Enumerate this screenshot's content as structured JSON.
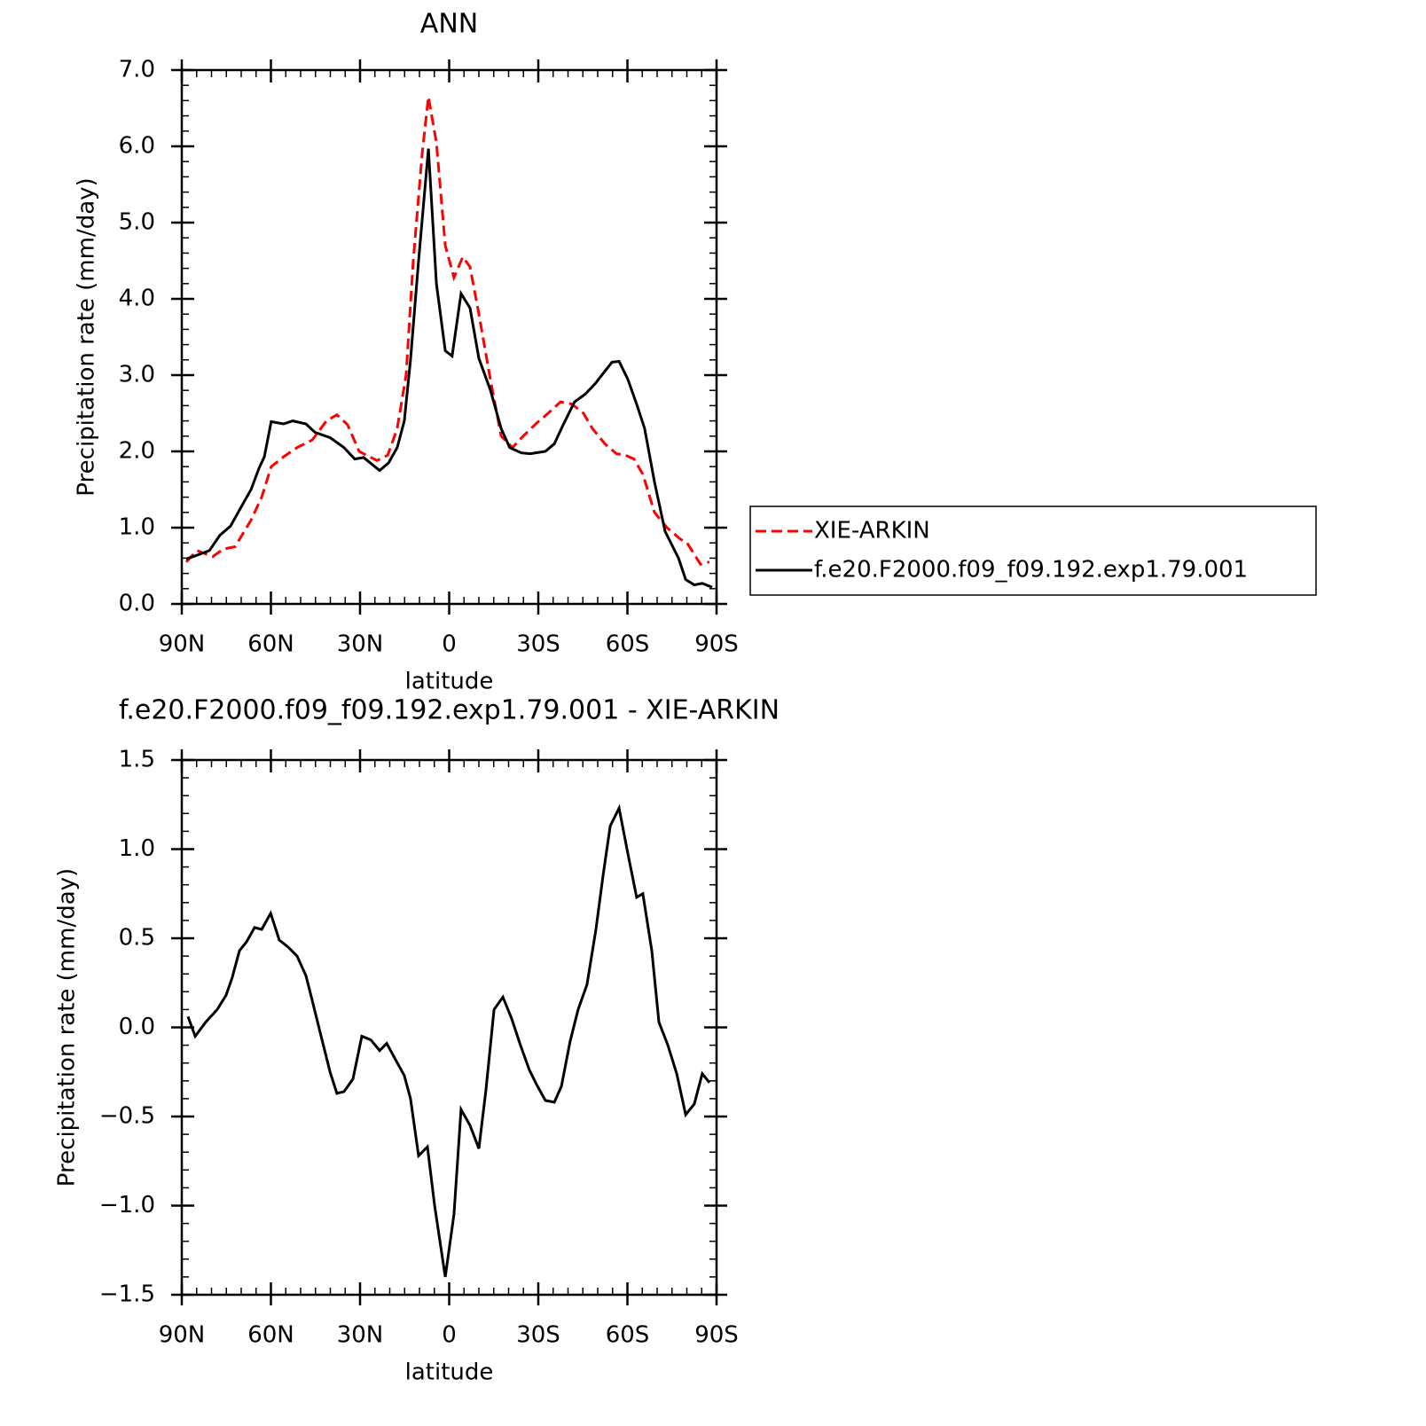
{
  "chart_data": [
    {
      "type": "line",
      "title": "ANN",
      "x_label": "latitude",
      "y_label": "Precipitation rate (mm/day)",
      "xlim": [
        90,
        -90
      ],
      "xticks": [
        {
          "value": 90,
          "label": "90N"
        },
        {
          "value": 60,
          "label": "60N"
        },
        {
          "value": 30,
          "label": "30N"
        },
        0,
        {
          "value": -30,
          "label": "30S"
        },
        {
          "value": -60,
          "label": "60S"
        },
        {
          "value": -90,
          "label": "90S"
        }
      ],
      "ylim": [
        0,
        7
      ],
      "yticks": [
        {
          "value": 0,
          "label": "0.0"
        },
        {
          "value": 1,
          "label": "1.0"
        },
        {
          "value": 2,
          "label": "2.0"
        },
        {
          "value": 3,
          "label": "3.0"
        },
        {
          "value": 4,
          "label": "4.0"
        },
        {
          "value": 5,
          "label": "5.0"
        },
        {
          "value": 6,
          "label": "6.0"
        },
        {
          "value": 7,
          "label": "7.0"
        }
      ],
      "legend": "right",
      "series": [
        {
          "name": "XIE-ARKIN",
          "color": "#ff0000",
          "line_style": "dashed",
          "x": [
            88.5,
            84.9,
            79.6,
            76,
            72.1,
            66.7,
            63.1,
            59.9,
            55.7,
            51.2,
            46.1,
            41.3,
            37.8,
            34.2,
            30.3,
            24.3,
            20.7,
            17.5,
            14.5,
            12.1,
            9.1,
            7,
            4.3,
            1.3,
            -1.6,
            -4.6,
            -7,
            -10,
            -13.6,
            -17.5,
            -21.3,
            -24.9,
            -29.4,
            -33.3,
            -37.5,
            -41.3,
            -45.2,
            -48.2,
            -52.4,
            -56.3,
            -59.3,
            -62.2,
            -65.2,
            -69.1,
            -73.3,
            -77.8,
            -80.1,
            -84.6,
            -87.6
          ],
          "values": [
            0.55,
            0.7,
            0.62,
            0.72,
            0.75,
            1.1,
            1.4,
            1.8,
            1.93,
            2.05,
            2.15,
            2.4,
            2.48,
            2.35,
            2.0,
            1.88,
            1.95,
            2.3,
            3.0,
            4.5,
            5.9,
            6.65,
            6.05,
            4.7,
            4.28,
            4.55,
            4.42,
            3.8,
            3.0,
            2.2,
            2.05,
            2.2,
            2.37,
            2.5,
            2.65,
            2.62,
            2.5,
            2.3,
            2.1,
            1.97,
            1.95,
            1.9,
            1.7,
            1.2,
            1.0,
            0.85,
            0.8,
            0.52,
            0.55
          ]
        },
        {
          "name": "f.e20.F2000.f09_f09.192.exp1.79.001",
          "color": "#000000",
          "line_style": "solid",
          "x": [
            88.5,
            85.5,
            80.7,
            77.2,
            73.6,
            70.6,
            66.7,
            64,
            62.2,
            59.9,
            55.7,
            52.7,
            48.2,
            45.2,
            40.1,
            35.4,
            31.8,
            28.8,
            23.4,
            20.4,
            17.5,
            15.1,
            13,
            10.3,
            7,
            4.3,
            1.3,
            -1,
            -4,
            -7,
            -10,
            -13.9,
            -17.5,
            -20.4,
            -24.3,
            -27.3,
            -32.4,
            -35.4,
            -38.4,
            -42.2,
            -45.8,
            -49.4,
            -52.4,
            -54.8,
            -57.2,
            -60.1,
            -63.1,
            -65.8,
            -69.1,
            -72.7,
            -77.2,
            -79.6,
            -82.5,
            -85.2,
            -88.5
          ],
          "values": [
            0.59,
            0.63,
            0.7,
            0.9,
            1.02,
            1.23,
            1.5,
            1.78,
            1.93,
            2.39,
            2.36,
            2.4,
            2.36,
            2.25,
            2.18,
            2.05,
            1.9,
            1.92,
            1.75,
            1.85,
            2.05,
            2.4,
            3.2,
            4.5,
            5.97,
            4.2,
            3.32,
            3.25,
            4.07,
            3.88,
            3.22,
            2.8,
            2.3,
            2.05,
            1.98,
            1.97,
            2.0,
            2.1,
            2.35,
            2.65,
            2.75,
            2.9,
            3.05,
            3.17,
            3.18,
            2.95,
            2.62,
            2.3,
            1.6,
            0.95,
            0.6,
            0.32,
            0.25,
            0.27,
            0.22
          ]
        }
      ]
    },
    {
      "type": "line",
      "title": "f.e20.F2000.f09_f09.192.exp1.79.001 - XIE-ARKIN",
      "x_label": "latitude",
      "y_label": "Precipitation rate (mm/day)",
      "xlim": [
        90,
        -90
      ],
      "xticks": [
        {
          "value": 90,
          "label": "90N"
        },
        {
          "value": 60,
          "label": "60N"
        },
        {
          "value": 30,
          "label": "30N"
        },
        0,
        {
          "value": -30,
          "label": "30S"
        },
        {
          "value": -60,
          "label": "60S"
        },
        {
          "value": -90,
          "label": "90S"
        }
      ],
      "ylim": [
        -1.5,
        1.5
      ],
      "yticks": [
        {
          "value": -1.5,
          "label": "−1.5"
        },
        {
          "value": -1,
          "label": "−1.0"
        },
        {
          "value": -0.5,
          "label": "−0.5"
        },
        {
          "value": 0,
          "label": "0.0"
        },
        0.5,
        {
          "value": 1,
          "label": "1.0"
        },
        1.5
      ],
      "series": [
        {
          "color": "#000000",
          "line_style": "solid",
          "x": [
            87.9,
            85.5,
            81.9,
            78.1,
            75.1,
            73,
            70.6,
            68.2,
            65.5,
            63.1,
            60.1,
            57.2,
            54.2,
            51.2,
            48.2,
            46.1,
            43.1,
            40.1,
            37.8,
            35.4,
            32.4,
            29.4,
            26.4,
            23.4,
            21,
            18.1,
            15.1,
            13,
            10.3,
            7.3,
            4.9,
            1.3,
            -1.6,
            -4,
            -7,
            -10,
            -12.4,
            -15.1,
            -18.1,
            -21,
            -24,
            -27,
            -29.4,
            -32.4,
            -35.4,
            -37.8,
            -40.7,
            -43.4,
            -46.4,
            -49.4,
            -51.8,
            -54.2,
            -57.2,
            -60.1,
            -63.1,
            -65.2,
            -68.2,
            -70.6,
            -73.6,
            -76.6,
            -79.6,
            -82.5,
            -85.2,
            -87.6
          ],
          "values": [
            0.06,
            -0.05,
            0.03,
            0.1,
            0.18,
            0.28,
            0.43,
            0.48,
            0.56,
            0.55,
            0.64,
            0.49,
            0.45,
            0.4,
            0.29,
            0.15,
            -0.05,
            -0.25,
            -0.37,
            -0.36,
            -0.29,
            -0.05,
            -0.07,
            -0.13,
            -0.09,
            -0.18,
            -0.27,
            -0.4,
            -0.72,
            -0.67,
            -1.0,
            -1.4,
            -1.05,
            -0.46,
            -0.55,
            -0.68,
            -0.35,
            0.1,
            0.17,
            0.05,
            -0.1,
            -0.24,
            -0.32,
            -0.41,
            -0.42,
            -0.33,
            -0.08,
            0.1,
            0.24,
            0.55,
            0.85,
            1.13,
            1.23,
            0.98,
            0.73,
            0.75,
            0.43,
            0.03,
            -0.1,
            -0.26,
            -0.49,
            -0.43,
            -0.26,
            -0.31
          ]
        }
      ]
    }
  ]
}
